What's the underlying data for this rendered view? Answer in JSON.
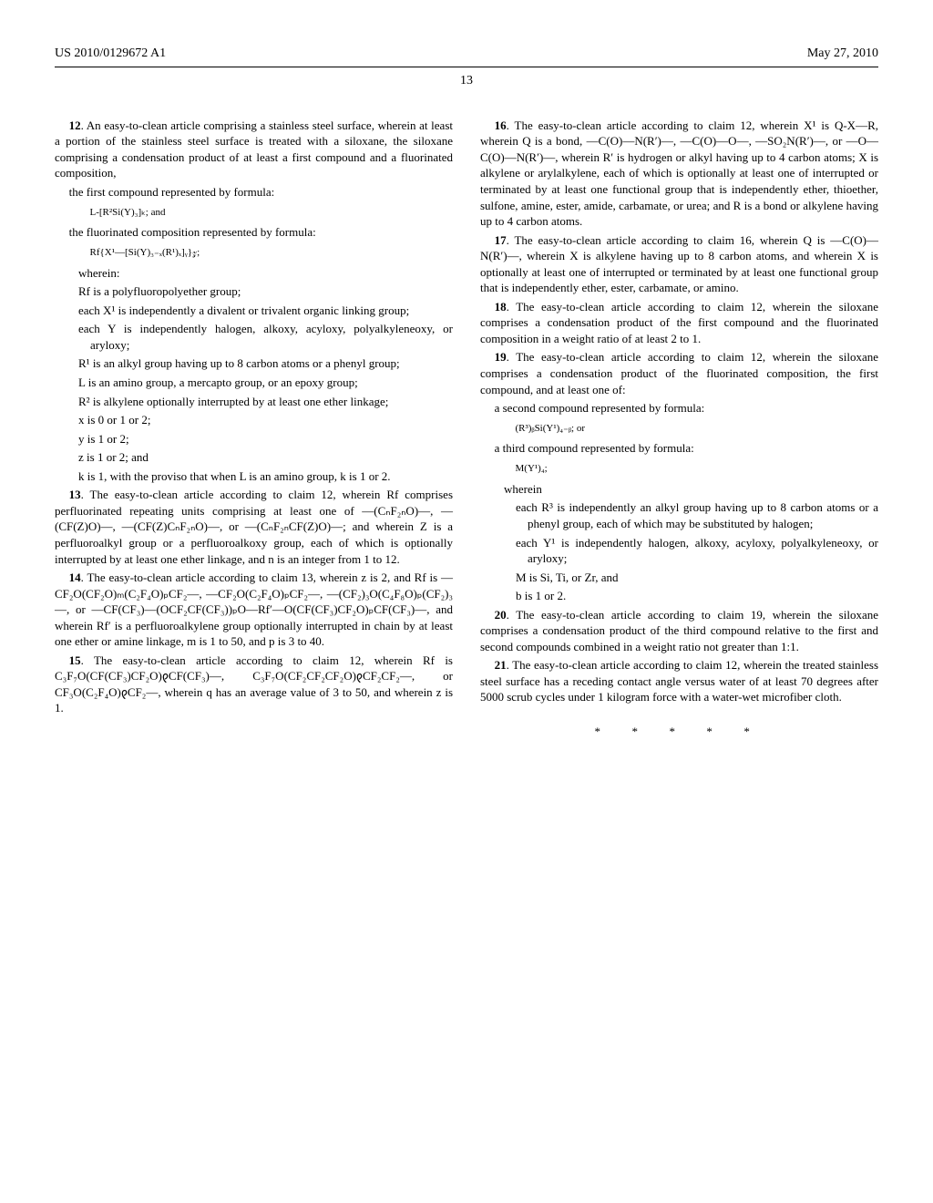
{
  "header": {
    "pub_number": "US 2010/0129672 A1",
    "pub_date": "May 27, 2010",
    "page_number": "13"
  },
  "claims": {
    "c12": {
      "intro": "12. An easy-to-clean article comprising a stainless steel surface, wherein at least a portion of the stainless steel surface is treated with a siloxane, the siloxane comprising a condensation product of at least a first compound and a fluorinated composition,",
      "first_label": "the first compound represented by formula:",
      "first_formula": "L-[R²Si(Y)₃]ₖ; and",
      "fluor_label": "the fluorinated composition represented by formula:",
      "fluor_formula": "Rf{X¹—[Si(Y)₃₋ₓ(R¹)ₓ]ᵧ}𝓏;",
      "wherein": "wherein:",
      "defs": [
        "Rf is a polyfluoropolyether group;",
        "each X¹ is independently a divalent or trivalent organic linking group;",
        "each Y is independently halogen, alkoxy, acyloxy, polyalkyleneoxy, or aryloxy;",
        "R¹ is an alkyl group having up to 8 carbon atoms or a phenyl group;",
        "L is an amino group, a mercapto group, or an epoxy group;",
        "R² is alkylene optionally interrupted by at least one ether linkage;",
        "x is 0 or 1 or 2;",
        "y is 1 or 2;",
        "z is 1 or 2; and",
        "k is 1, with the proviso that when L is an amino group, k is 1 or 2."
      ]
    },
    "c13": "13. The easy-to-clean article according to claim 12, wherein Rf comprises perfluorinated repeating units comprising at least one of —(CₙF₂ₙO)—, —(CF(Z)O)—, —(CF(Z)CₙF₂ₙO)—, or —(CₙF₂ₙCF(Z)O)—; and wherein Z is a perfluoroalkyl group or a perfluoroalkoxy group, each of which is optionally interrupted by at least one ether linkage, and n is an integer from 1 to 12.",
    "c14": "14. The easy-to-clean article according to claim 13, wherein z is 2, and Rf is —CF₂O(CF₂O)ₘ(C₂F₄O)ₚCF₂—, —CF₂O(C₂F₄O)ₚCF₂—, —(CF₂)₃O(C₄F₈O)ₚ(CF₂)₃—, or —CF(CF₃)—(OCF₂CF(CF₃))ₚO—Rf′—O(CF(CF₃)CF₂O)ₚCF(CF₃)—, and wherein Rf′ is a perfluoroalkylene group optionally interrupted in chain by at least one ether or amine linkage, m is 1 to 50, and p is 3 to 40.",
    "c15": "15. The easy-to-clean article according to claim 12, wherein Rf is C₃F₇O(CF(CF₃)CF₂O)𐑞CF(CF₃)—, C₃F₇O(CF₂CF₂CF₂O)𐑞CF₂CF₂—, or CF₃O(C₂F₄O)𐑞CF₂—, wherein q has an average value of 3 to 50, and wherein z is 1.",
    "c16": "16. The easy-to-clean article according to claim 12, wherein X¹ is Q-X—R, wherein Q is a bond, —C(O)—N(R′)—, —C(O)—O—, —SO₂N(R′)—, or —O—C(O)—N(R′)—, wherein R′ is hydrogen or alkyl having up to 4 carbon atoms; X is alkylene or arylalkylene, each of which is optionally at least one of interrupted or terminated by at least one functional group that is independently ether, thioether, sulfone, amine, ester, amide, carbamate, or urea; and R is a bond or alkylene having up to 4 carbon atoms.",
    "c17": "17. The easy-to-clean article according to claim 16, wherein Q is —C(O)—N(R′)—, wherein X is alkylene having up to 8 carbon atoms, and wherein X is optionally at least one of interrupted or terminated by at least one functional group that is independently ether, ester, carbamate, or amino.",
    "c18": "18. The easy-to-clean article according to claim 12, wherein the siloxane comprises a condensation product of the first compound and the fluorinated composition in a weight ratio of at least 2 to 1.",
    "c19": {
      "intro": "19. The easy-to-clean article according to claim 12, wherein the siloxane comprises a condensation product of the fluorinated composition, the first compound, and at least one of:",
      "second_label": "a second compound represented by formula:",
      "second_formula": "(R³)ᵦSi(Y¹)₄₋ᵦ; or",
      "third_label": "a third compound represented by formula:",
      "third_formula": "M(Y¹)₄;",
      "wherein": "wherein",
      "defs": [
        "each R³ is independently an alkyl group having up to 8 carbon atoms or a phenyl group, each of which may be substituted by halogen;",
        "each Y¹ is independently halogen, alkoxy, acyloxy, polyalkyleneoxy, or aryloxy;",
        "M is Si, Ti, or Zr, and",
        "b is 1 or 2."
      ]
    },
    "c20": "20. The easy-to-clean article according to claim 19, wherein the siloxane comprises a condensation product of the third compound relative to the first and second compounds combined in a weight ratio not greater than 1:1.",
    "c21": "21. The easy-to-clean article according to claim 12, wherein the treated stainless steel surface has a receding contact angle versus water of at least 70 degrees after 5000 scrub cycles under 1 kilogram force with a water-wet microfiber cloth."
  },
  "end_marker": "* * * * *"
}
